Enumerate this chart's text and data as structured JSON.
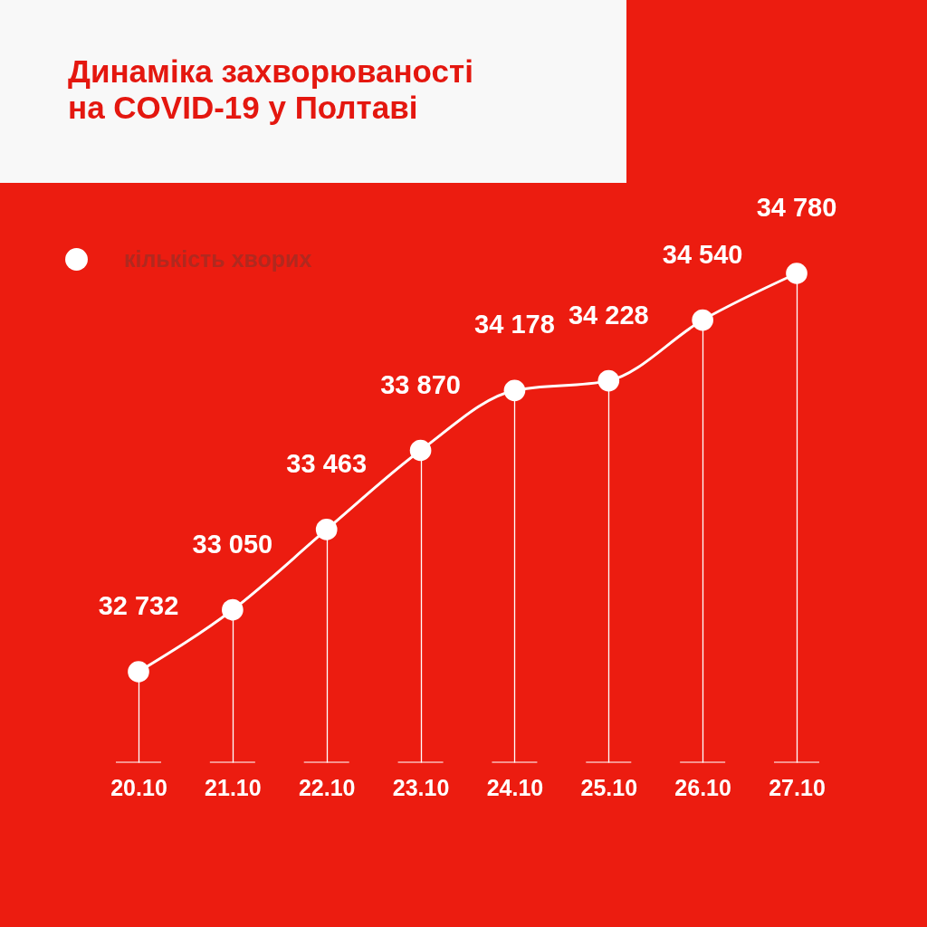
{
  "chart_data": {
    "type": "line",
    "title": "Динаміка захворюваності на COVID-19 у Полтаві",
    "categories": [
      "20.10",
      "21.10",
      "22.10",
      "23.10",
      "24.10",
      "25.10",
      "26.10",
      "27.10"
    ],
    "series": [
      {
        "name": "кількість хворих",
        "color": "#ffffff",
        "values": [
          32732,
          33050,
          33463,
          33870,
          34178,
          34228,
          34540,
          34780
        ]
      }
    ],
    "data_labels": true,
    "legend": "top left",
    "marker": "circle",
    "line_style": "solid",
    "grid": "x"
  }
}
